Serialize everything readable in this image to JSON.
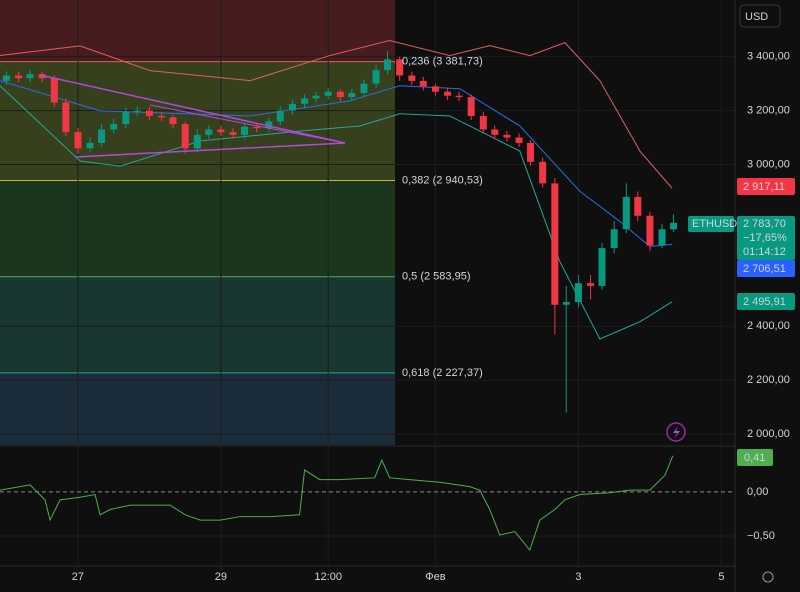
{
  "chart_data": {
    "type": "candlestick",
    "currency_button": "USD",
    "symbol": "ETHUSD",
    "xlim": [
      -1.09,
      9.12
    ],
    "xticks": [
      {
        "value": 0,
        "label": "27"
      },
      {
        "value": 2,
        "label": "29"
      },
      {
        "value": 3.5,
        "label": "12:00"
      },
      {
        "value": 5,
        "label": "Фев"
      },
      {
        "value": 7,
        "label": "3"
      },
      {
        "value": 9,
        "label": "5"
      }
    ],
    "ylim": [
      1960,
      3610
    ],
    "yticks": [
      {
        "value": 2000,
        "label": "2 000,00"
      },
      {
        "value": 2200,
        "label": "2 200,00"
      },
      {
        "value": 2400,
        "label": "2 400,00"
      },
      {
        "value": 3000,
        "label": "3 000,00"
      },
      {
        "value": 3200,
        "label": "3 200,00"
      },
      {
        "value": 3400,
        "label": "3 400,00"
      }
    ],
    "up_color": "#089981",
    "down_color": "#f23645",
    "x": [
      -1,
      -0.83,
      -0.67,
      -0.5,
      -0.33,
      -0.17,
      0,
      0.17,
      0.33,
      0.5,
      0.67,
      0.83,
      1,
      1.17,
      1.33,
      1.5,
      1.67,
      1.83,
      2,
      2.17,
      2.33,
      2.5,
      2.67,
      2.83,
      3,
      3.17,
      3.33,
      3.5,
      3.67,
      3.83,
      4,
      4.17,
      4.33,
      4.5,
      4.67,
      4.83,
      5,
      5.17,
      5.33,
      5.5,
      5.67,
      5.83,
      6,
      6.17,
      6.33,
      6.5,
      6.67,
      6.83,
      7,
      7.17,
      7.33,
      7.5,
      7.67,
      7.83,
      8,
      8.17,
      8.33
    ],
    "open": [
      3310,
      3330,
      3320,
      3335,
      3320,
      3230,
      3120,
      3060,
      3080,
      3130,
      3150,
      3195,
      3200,
      3180,
      3175,
      3150,
      3060,
      3110,
      3130,
      3120,
      3110,
      3140,
      3135,
      3160,
      3200,
      3225,
      3245,
      3255,
      3270,
      3250,
      3265,
      3300,
      3350,
      3390,
      3330,
      3310,
      3290,
      3270,
      3255,
      3250,
      3180,
      3130,
      3110,
      3100,
      3080,
      3010,
      2930,
      2480,
      2490,
      2560,
      2550,
      2690,
      2760,
      2880,
      2810,
      2700,
      2760
    ],
    "high": [
      3345,
      3345,
      3350,
      3345,
      3330,
      3245,
      3135,
      3100,
      3150,
      3170,
      3210,
      3215,
      3215,
      3195,
      3185,
      3160,
      3130,
      3145,
      3145,
      3135,
      3155,
      3155,
      3175,
      3215,
      3240,
      3260,
      3270,
      3285,
      3280,
      3280,
      3315,
      3370,
      3420,
      3400,
      3345,
      3325,
      3300,
      3285,
      3270,
      3260,
      3195,
      3145,
      3125,
      3115,
      3090,
      3025,
      2950,
      2550,
      2590,
      2590,
      2710,
      2790,
      2930,
      2900,
      2825,
      2780,
      2815
    ],
    "low": [
      3295,
      3305,
      3305,
      3305,
      3215,
      3105,
      3040,
      3045,
      3065,
      3115,
      3135,
      3180,
      3165,
      3160,
      3135,
      3040,
      3045,
      3095,
      3105,
      3095,
      3095,
      3120,
      3120,
      3145,
      3185,
      3210,
      3230,
      3240,
      3235,
      3235,
      3250,
      3285,
      3335,
      3310,
      3295,
      3275,
      3255,
      3240,
      3235,
      3165,
      3115,
      3095,
      3085,
      3065,
      2995,
      2915,
      2370,
      2080,
      2470,
      2500,
      2535,
      2670,
      2745,
      2790,
      2680,
      2690,
      2750
    ],
    "close": [
      3330,
      3320,
      3335,
      3320,
      3230,
      3120,
      3060,
      3080,
      3130,
      3150,
      3195,
      3200,
      3180,
      3175,
      3150,
      3060,
      3110,
      3130,
      3120,
      3110,
      3140,
      3135,
      3160,
      3200,
      3225,
      3245,
      3255,
      3270,
      3250,
      3265,
      3300,
      3350,
      3390,
      3330,
      3310,
      3290,
      3270,
      3255,
      3250,
      3180,
      3130,
      3110,
      3100,
      3080,
      3010,
      2930,
      2480,
      2490,
      2560,
      2550,
      2690,
      2760,
      2880,
      2810,
      2700,
      2760,
      2783.7
    ],
    "bands": [
      {
        "color": "#e0605d",
        "x": [
          -1.09,
          0.03,
          1.01,
          2.41,
          3.52,
          4.36,
          5.2,
          5.76,
          6.32,
          6.81,
          7.3,
          7.86,
          8.31
        ],
        "values": [
          3404,
          3440,
          3348,
          3311,
          3404,
          3460,
          3404,
          3441,
          3404,
          3452,
          3311,
          3050,
          2912
        ]
      },
      {
        "color": "#2e6be6",
        "x": [
          -1.09,
          0.31,
          2.41,
          3.8,
          4.5,
          5.34,
          6.18,
          7.02,
          7.58,
          8.0,
          8.31
        ],
        "values": [
          3311,
          3199,
          3180,
          3236,
          3292,
          3281,
          3143,
          2901,
          2789,
          2696,
          2704
        ]
      },
      {
        "color": "#26a69a",
        "x": [
          -1.09,
          0.03,
          0.59,
          1.71,
          3.1,
          3.94,
          4.5,
          5.2,
          6.18,
          6.74,
          7.3,
          7.86,
          8.31
        ],
        "values": [
          3292,
          3013,
          2994,
          3087,
          3124,
          3143,
          3188,
          3180,
          3050,
          2640,
          2353,
          2417,
          2491
        ]
      }
    ],
    "fib_levels": [
      {
        "value": 3381.73,
        "label": "0,236 (3 381,73)",
        "color": "#e0605d"
      },
      {
        "value": 2940.53,
        "label": "0,382 (2 940,53)",
        "color": "#b5c13c"
      },
      {
        "value": 2583.95,
        "label": "0,5 (2 583,95)",
        "color": "#4caf50"
      },
      {
        "value": 2227.37,
        "label": "0,618 (2 227,37)",
        "color": "#26a69a"
      }
    ],
    "fib_zone_colors": [
      "#4a1e21",
      "#3a431f",
      "#1d391f",
      "#1b3934",
      "#1c2f3e"
    ],
    "price_labels": {
      "upper": "2 917,11",
      "last": "2 783,70",
      "change": "−17,65%",
      "countdown": "01:14:12",
      "middle": "2 706,51",
      "lower": "2 495,91"
    },
    "oscillator": {
      "color": "#4caf50",
      "y2lim": [
        -0.83,
        0.51
      ],
      "y2ticks": [
        {
          "value": -0.5,
          "label": "−0,50"
        },
        {
          "value": 0,
          "label": "0,00"
        }
      ],
      "x": [
        -1.09,
        -0.67,
        -0.46,
        -0.39,
        -0.25,
        0.03,
        0.24,
        0.31,
        0.45,
        0.73,
        1.29,
        1.5,
        1.71,
        1.99,
        2.27,
        2.69,
        3.1,
        3.17,
        3.38,
        3.66,
        4.15,
        4.25,
        4.36,
        4.64,
        5.06,
        5.48,
        5.62,
        5.76,
        5.9,
        6.11,
        6.32,
        6.46,
        6.67,
        6.81,
        7.02,
        7.44,
        7.72,
        8.0,
        8.21,
        8.32
      ],
      "values": [
        0.02,
        0.08,
        -0.09,
        -0.32,
        -0.09,
        -0.06,
        -0.03,
        -0.26,
        -0.2,
        -0.15,
        -0.15,
        -0.26,
        -0.32,
        -0.32,
        -0.28,
        -0.28,
        -0.26,
        0.25,
        0.14,
        0.14,
        0.16,
        0.36,
        0.16,
        0.14,
        0.11,
        0.06,
        0.02,
        -0.2,
        -0.49,
        -0.45,
        -0.66,
        -0.32,
        -0.2,
        -0.09,
        -0.03,
        -0.01,
        0.02,
        0.02,
        0.19,
        0.41
      ],
      "last_label": "0,41"
    }
  }
}
